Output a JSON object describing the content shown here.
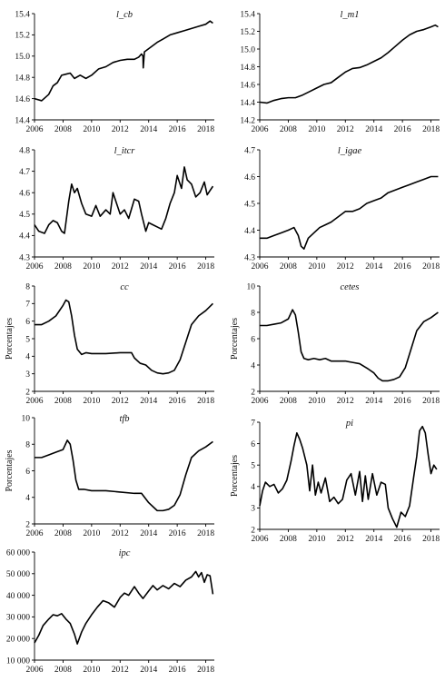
{
  "chart_data": [
    {
      "type": "line",
      "title": "l_cb",
      "ylabel": "",
      "xlim": [
        2006,
        2018.6
      ],
      "ylim": [
        14.4,
        15.4
      ],
      "xticks": [
        2006,
        2008,
        2010,
        2012,
        2014,
        2016,
        2018
      ],
      "yticks": [
        14.4,
        14.6,
        14.8,
        15.0,
        15.2,
        15.4
      ],
      "ytick_labels": [
        "14.4",
        "14.6",
        "14.8",
        "15.0",
        "15.2",
        "15.4"
      ],
      "series": [
        {
          "x": [
            2006.0,
            2006.5,
            2007.0,
            2007.3,
            2007.6,
            2007.9,
            2008.2,
            2008.5,
            2008.8,
            2009.2,
            2009.6,
            2010.0,
            2010.5,
            2011.0,
            2011.5,
            2012.0,
            2012.5,
            2013.0,
            2013.3,
            2013.5,
            2013.6,
            2013.62,
            2013.7,
            2014.0,
            2014.3,
            2014.6,
            2015.0,
            2015.5,
            2016.0,
            2016.5,
            2017.0,
            2017.5,
            2018.0,
            2018.3,
            2018.5
          ],
          "y": [
            14.6,
            14.58,
            14.64,
            14.72,
            14.75,
            14.82,
            14.83,
            14.84,
            14.79,
            14.82,
            14.79,
            14.82,
            14.88,
            14.9,
            14.94,
            14.96,
            14.97,
            14.97,
            14.99,
            15.02,
            15.0,
            14.89,
            15.04,
            15.07,
            15.1,
            15.13,
            15.16,
            15.2,
            15.22,
            15.24,
            15.26,
            15.28,
            15.3,
            15.33,
            15.31
          ]
        }
      ]
    },
    {
      "type": "line",
      "title": "l_m1",
      "ylabel": "",
      "xlim": [
        2006,
        2018.6
      ],
      "ylim": [
        14.2,
        15.4
      ],
      "xticks": [
        2006,
        2008,
        2010,
        2012,
        2014,
        2016,
        2018
      ],
      "yticks": [
        14.2,
        14.4,
        14.6,
        14.8,
        15.0,
        15.2,
        15.4
      ],
      "ytick_labels": [
        "14.2",
        "14.4",
        "14.6",
        "14.8",
        "15.0",
        "15.2",
        "15.4"
      ],
      "series": [
        {
          "x": [
            2006.0,
            2006.5,
            2007.0,
            2007.5,
            2008.0,
            2008.5,
            2009.0,
            2009.5,
            2010.0,
            2010.5,
            2011.0,
            2011.5,
            2012.0,
            2012.5,
            2013.0,
            2013.5,
            2014.0,
            2014.5,
            2015.0,
            2015.5,
            2016.0,
            2016.5,
            2017.0,
            2017.5,
            2018.0,
            2018.3,
            2018.5
          ],
          "y": [
            14.4,
            14.39,
            14.42,
            14.44,
            14.45,
            14.45,
            14.48,
            14.52,
            14.56,
            14.6,
            14.62,
            14.68,
            14.74,
            14.78,
            14.79,
            14.82,
            14.86,
            14.9,
            14.96,
            15.03,
            15.1,
            15.16,
            15.2,
            15.22,
            15.25,
            15.27,
            15.25
          ]
        }
      ]
    },
    {
      "type": "line",
      "title": "l_itcr",
      "ylabel": "",
      "xlim": [
        2006,
        2018.6
      ],
      "ylim": [
        4.3,
        4.8
      ],
      "xticks": [
        2006,
        2008,
        2010,
        2012,
        2014,
        2016,
        2018
      ],
      "yticks": [
        4.3,
        4.4,
        4.5,
        4.6,
        4.7,
        4.8
      ],
      "ytick_labels": [
        "4.3",
        "4.4",
        "4.5",
        "4.6",
        "4.7",
        "4.8"
      ],
      "series": [
        {
          "x": [
            2006.0,
            2006.3,
            2006.7,
            2007.0,
            2007.3,
            2007.6,
            2007.9,
            2008.1,
            2008.4,
            2008.6,
            2008.8,
            2009.0,
            2009.3,
            2009.6,
            2010.0,
            2010.3,
            2010.6,
            2011.0,
            2011.3,
            2011.5,
            2011.8,
            2012.0,
            2012.3,
            2012.6,
            2013.0,
            2013.3,
            2013.5,
            2013.8,
            2014.0,
            2014.3,
            2014.6,
            2014.9,
            2015.2,
            2015.5,
            2015.8,
            2016.0,
            2016.3,
            2016.5,
            2016.7,
            2017.0,
            2017.3,
            2017.6,
            2017.9,
            2018.1,
            2018.3,
            2018.5
          ],
          "y": [
            4.45,
            4.42,
            4.41,
            4.45,
            4.47,
            4.46,
            4.42,
            4.41,
            4.56,
            4.64,
            4.6,
            4.62,
            4.55,
            4.5,
            4.49,
            4.54,
            4.49,
            4.52,
            4.5,
            4.6,
            4.54,
            4.5,
            4.52,
            4.48,
            4.57,
            4.56,
            4.5,
            4.42,
            4.46,
            4.45,
            4.44,
            4.43,
            4.48,
            4.55,
            4.6,
            4.68,
            4.62,
            4.72,
            4.66,
            4.64,
            4.58,
            4.6,
            4.65,
            4.59,
            4.61,
            4.63
          ]
        }
      ]
    },
    {
      "type": "line",
      "title": "l_igae",
      "ylabel": "",
      "xlim": [
        2006,
        2018.6
      ],
      "ylim": [
        4.3,
        4.7
      ],
      "xticks": [
        2006,
        2008,
        2010,
        2012,
        2014,
        2016,
        2018
      ],
      "yticks": [
        4.3,
        4.4,
        4.5,
        4.6,
        4.7
      ],
      "ytick_labels": [
        "4.3",
        "4.4",
        "4.5",
        "4.6",
        "4.7"
      ],
      "series": [
        {
          "x": [
            2006.0,
            2006.5,
            2007.0,
            2007.5,
            2008.0,
            2008.4,
            2008.7,
            2008.9,
            2009.1,
            2009.4,
            2009.8,
            2010.2,
            2010.6,
            2011.0,
            2011.5,
            2012.0,
            2012.5,
            2013.0,
            2013.5,
            2014.0,
            2014.5,
            2015.0,
            2015.5,
            2016.0,
            2016.5,
            2017.0,
            2017.5,
            2018.0,
            2018.5
          ],
          "y": [
            4.37,
            4.37,
            4.38,
            4.39,
            4.4,
            4.41,
            4.38,
            4.34,
            4.33,
            4.37,
            4.39,
            4.41,
            4.42,
            4.43,
            4.45,
            4.47,
            4.47,
            4.48,
            4.5,
            4.51,
            4.52,
            4.54,
            4.55,
            4.56,
            4.57,
            4.58,
            4.59,
            4.6,
            4.6
          ]
        }
      ]
    },
    {
      "type": "line",
      "title": "cc",
      "ylabel": "Porcentajes",
      "xlim": [
        2006,
        2018.6
      ],
      "ylim": [
        2,
        8
      ],
      "xticks": [
        2006,
        2008,
        2010,
        2012,
        2014,
        2016,
        2018
      ],
      "yticks": [
        2,
        3,
        4,
        5,
        6,
        7,
        8
      ],
      "ytick_labels": [
        "2",
        "3",
        "4",
        "5",
        "6",
        "7",
        "8"
      ],
      "series": [
        {
          "x": [
            2006.0,
            2006.5,
            2007.0,
            2007.5,
            2008.0,
            2008.2,
            2008.4,
            2008.6,
            2008.8,
            2009.0,
            2009.3,
            2009.6,
            2010.0,
            2011.0,
            2012.0,
            2012.8,
            2013.0,
            2013.4,
            2013.8,
            2014.2,
            2014.6,
            2015.0,
            2015.4,
            2015.8,
            2016.2,
            2016.6,
            2017.0,
            2017.5,
            2018.0,
            2018.5
          ],
          "y": [
            5.8,
            5.8,
            6.0,
            6.3,
            6.9,
            7.2,
            7.1,
            6.3,
            5.2,
            4.4,
            4.1,
            4.2,
            4.15,
            4.15,
            4.2,
            4.2,
            3.9,
            3.6,
            3.5,
            3.2,
            3.05,
            3.0,
            3.05,
            3.2,
            3.8,
            4.8,
            5.8,
            6.3,
            6.6,
            7.0
          ]
        }
      ]
    },
    {
      "type": "line",
      "title": "cetes",
      "ylabel": "Porcentajes",
      "xlim": [
        2006,
        2018.6
      ],
      "ylim": [
        2,
        10
      ],
      "xticks": [
        2006,
        2008,
        2010,
        2012,
        2014,
        2016,
        2018
      ],
      "yticks": [
        2,
        4,
        6,
        8,
        10
      ],
      "ytick_labels": [
        "2",
        "4",
        "6",
        "8",
        "10"
      ],
      "series": [
        {
          "x": [
            2006.0,
            2006.5,
            2007.0,
            2007.5,
            2008.0,
            2008.3,
            2008.5,
            2008.7,
            2008.9,
            2009.1,
            2009.4,
            2009.8,
            2010.2,
            2010.6,
            2011.0,
            2011.5,
            2012.0,
            2012.5,
            2013.0,
            2013.3,
            2013.6,
            2014.0,
            2014.3,
            2014.6,
            2015.0,
            2015.4,
            2015.8,
            2016.2,
            2016.6,
            2017.0,
            2017.5,
            2018.0,
            2018.5
          ],
          "y": [
            7.0,
            7.0,
            7.1,
            7.2,
            7.5,
            8.2,
            7.8,
            6.5,
            5.0,
            4.5,
            4.4,
            4.5,
            4.4,
            4.5,
            4.3,
            4.3,
            4.3,
            4.2,
            4.1,
            3.9,
            3.7,
            3.4,
            3.0,
            2.8,
            2.8,
            2.9,
            3.1,
            3.8,
            5.2,
            6.6,
            7.3,
            7.6,
            8.0
          ]
        }
      ]
    },
    {
      "type": "line",
      "title": "tfb",
      "ylabel": "Porcentajes",
      "xlim": [
        2006,
        2018.6
      ],
      "ylim": [
        2,
        10
      ],
      "xticks": [
        2006,
        2008,
        2010,
        2012,
        2014,
        2016,
        2018
      ],
      "yticks": [
        2,
        4,
        6,
        8,
        10
      ],
      "ytick_labels": [
        "2",
        "4",
        "6",
        "8",
        "10"
      ],
      "series": [
        {
          "x": [
            2006.0,
            2006.5,
            2007.0,
            2007.5,
            2008.0,
            2008.3,
            2008.5,
            2008.7,
            2008.9,
            2009.1,
            2009.5,
            2010.0,
            2011.0,
            2012.0,
            2013.0,
            2013.5,
            2014.0,
            2014.3,
            2014.6,
            2015.0,
            2015.4,
            2015.8,
            2016.2,
            2016.6,
            2017.0,
            2017.5,
            2018.0,
            2018.5
          ],
          "y": [
            7.0,
            7.0,
            7.2,
            7.4,
            7.6,
            8.3,
            8.0,
            6.8,
            5.3,
            4.6,
            4.6,
            4.5,
            4.5,
            4.4,
            4.3,
            4.3,
            3.6,
            3.3,
            3.0,
            3.0,
            3.1,
            3.4,
            4.2,
            5.7,
            7.0,
            7.5,
            7.8,
            8.2
          ]
        }
      ]
    },
    {
      "type": "line",
      "title": "pi",
      "ylabel": "Porcentajes",
      "xlim": [
        2006,
        2018.6
      ],
      "ylim": [
        2,
        7
      ],
      "xticks": [
        2006,
        2008,
        2010,
        2012,
        2014,
        2016,
        2018
      ],
      "yticks": [
        2,
        3,
        4,
        5,
        6,
        7
      ],
      "ytick_labels": [
        "2",
        "3",
        "4",
        "5",
        "6",
        "7"
      ],
      "series": [
        {
          "x": [
            2006.0,
            2006.2,
            2006.4,
            2006.7,
            2007.0,
            2007.3,
            2007.6,
            2007.9,
            2008.2,
            2008.4,
            2008.6,
            2008.8,
            2009.0,
            2009.3,
            2009.5,
            2009.7,
            2009.9,
            2010.1,
            2010.3,
            2010.6,
            2010.9,
            2011.2,
            2011.5,
            2011.8,
            2012.1,
            2012.4,
            2012.7,
            2013.0,
            2013.2,
            2013.4,
            2013.6,
            2013.9,
            2014.2,
            2014.5,
            2014.8,
            2015.0,
            2015.3,
            2015.6,
            2015.9,
            2016.2,
            2016.5,
            2016.8,
            2017.0,
            2017.2,
            2017.4,
            2017.6,
            2017.8,
            2018.0,
            2018.2,
            2018.4
          ],
          "y": [
            3.1,
            3.8,
            4.2,
            4.0,
            4.1,
            3.7,
            3.9,
            4.3,
            5.2,
            5.9,
            6.5,
            6.2,
            5.8,
            5.0,
            3.8,
            5.0,
            3.6,
            4.2,
            3.7,
            4.4,
            3.3,
            3.5,
            3.2,
            3.4,
            4.3,
            4.6,
            3.6,
            4.7,
            3.3,
            4.5,
            3.4,
            4.6,
            3.6,
            4.2,
            4.1,
            3.0,
            2.5,
            2.1,
            2.8,
            2.6,
            3.1,
            4.5,
            5.4,
            6.6,
            6.8,
            6.5,
            5.5,
            4.6,
            5.0,
            4.8
          ]
        }
      ]
    },
    {
      "type": "line",
      "title": "ipc",
      "ylabel": "",
      "xlim": [
        2006,
        2018.6
      ],
      "ylim": [
        10000,
        60000
      ],
      "xticks": [
        2006,
        2008,
        2010,
        2012,
        2014,
        2016,
        2018
      ],
      "yticks": [
        10000,
        20000,
        30000,
        40000,
        50000,
        60000
      ],
      "ytick_labels": [
        "10 000",
        "20 000",
        "30 000",
        "40 000",
        "50 000",
        "60 000"
      ],
      "series": [
        {
          "x": [
            2006.0,
            2006.3,
            2006.6,
            2007.0,
            2007.3,
            2007.6,
            2007.9,
            2008.2,
            2008.5,
            2008.8,
            2009.0,
            2009.3,
            2009.6,
            2010.0,
            2010.4,
            2010.8,
            2011.2,
            2011.6,
            2012.0,
            2012.3,
            2012.6,
            2013.0,
            2013.3,
            2013.6,
            2014.0,
            2014.3,
            2014.6,
            2015.0,
            2015.4,
            2015.8,
            2016.2,
            2016.6,
            2017.0,
            2017.3,
            2017.5,
            2017.7,
            2017.9,
            2018.1,
            2018.3,
            2018.5
          ],
          "y": [
            18000,
            21500,
            26000,
            29000,
            31000,
            30500,
            31500,
            29000,
            27000,
            22000,
            17500,
            23000,
            27000,
            31000,
            34500,
            37500,
            36500,
            34500,
            39000,
            41000,
            40000,
            44000,
            41000,
            38500,
            42000,
            44500,
            42500,
            44500,
            43000,
            45500,
            44000,
            47000,
            48500,
            51000,
            48500,
            50500,
            46000,
            49500,
            49000,
            40500
          ]
        }
      ]
    }
  ]
}
